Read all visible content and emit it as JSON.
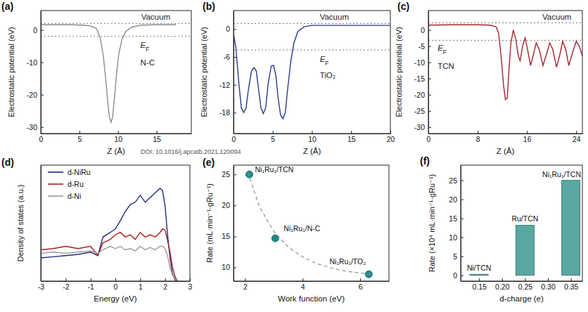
{
  "chart_data": [
    {
      "type": "line",
      "title": "(a)",
      "x_label": "Z (Å)",
      "y_label": "Electrostatic potential (eV)",
      "x": [
        0,
        2,
        4,
        5.5,
        6.5,
        7.2,
        7.7,
        8.1,
        8.4,
        8.7,
        8.9,
        9.1,
        9.3,
        9.5,
        9.8,
        10.1,
        10.5,
        11,
        11.8,
        13,
        15,
        17.5
      ],
      "series": [
        {
          "color": "#8c8c8c",
          "values": [
            1.6,
            1.6,
            1.6,
            1.5,
            1.2,
            0.5,
            -2.5,
            -8,
            -15,
            -23,
            -27,
            -28.5,
            -27,
            -22,
            -14,
            -7.5,
            -3,
            -0.5,
            0.9,
            1.5,
            1.6,
            1.6
          ]
        }
      ],
      "xlim": [
        0,
        19.5
      ],
      "ylim": [
        -32,
        6
      ],
      "xticks": [
        0,
        5,
        10,
        15
      ],
      "yticks": [
        0,
        -10,
        -20,
        -30
      ],
      "hlines": [
        {
          "y": 2.0,
          "line_style": "dotted"
        },
        {
          "y": -2.0,
          "line_style": "dotted"
        }
      ],
      "annotations": [
        {
          "text": "Vacuum",
          "x": 13.0,
          "y": 3.2
        },
        {
          "text": "E",
          "subscript": "F",
          "x": 12.9,
          "y": -5.5
        },
        {
          "text": "N-C",
          "x": 12.9,
          "y": -11
        }
      ]
    },
    {
      "type": "line",
      "title": "(b)",
      "x_label": "Z (Å)",
      "y_label": "Electrostatic potential (eV)",
      "source": "DOI: 10.1016/j.apcatb.2021.120094",
      "x": [
        0,
        0.3,
        0.7,
        1.0,
        1.3,
        1.6,
        1.9,
        2.3,
        2.6,
        2.9,
        3.2,
        3.5,
        3.8,
        4.1,
        4.4,
        4.8,
        5.1,
        5.4,
        5.7,
        6.0,
        6.3,
        6.6,
        6.9,
        7.3,
        7.7,
        8.2,
        9,
        10,
        12,
        15,
        20
      ],
      "series": [
        {
          "color": "#2b3990",
          "values": [
            -1,
            -4,
            -12,
            -17,
            -18,
            -17,
            -13,
            -9,
            -8.3,
            -9,
            -13,
            -17,
            -18.2,
            -17,
            -12,
            -8,
            -7.8,
            -10,
            -15,
            -18.5,
            -19.3,
            -18,
            -13,
            -7,
            -3,
            -0.5,
            0.5,
            0.8,
            0.8,
            0.8,
            0.8
          ]
        }
      ],
      "xlim": [
        0,
        20
      ],
      "ylim": [
        -22.5,
        4
      ],
      "xticks": [
        0,
        5,
        10,
        15,
        20
      ],
      "yticks": [
        0,
        -6,
        -12,
        -18
      ],
      "hlines": [
        {
          "y": 1.2,
          "line_style": "dotted"
        },
        {
          "y": -4.5,
          "line_style": "dotted"
        }
      ],
      "annotations": [
        {
          "text": "Vacuum",
          "x": 11.0,
          "y": 2.0
        },
        {
          "text": "E",
          "subscript": "F",
          "x": 11.0,
          "y": -7
        },
        {
          "text": "TiO₂",
          "x": 11.0,
          "y": -10.5
        }
      ]
    },
    {
      "type": "line",
      "title": "(c)",
      "x_label": "Z (Å)",
      "y_label": "Electrostatic potential (eV)",
      "x": [
        0,
        4,
        8,
        10,
        11,
        11.4,
        11.8,
        12.2,
        12.5,
        12.8,
        13.1,
        13.4,
        13.8,
        14.2,
        14.6,
        14.9,
        15.3,
        15.7,
        16.1,
        16.6,
        17.0,
        17.5,
        18.0,
        18.6,
        19.1,
        19.7,
        20.2,
        20.8,
        21.3,
        21.8,
        22.3,
        22.8,
        23.4,
        24.0,
        24.5,
        25
      ],
      "series": [
        {
          "color": "#a3262a",
          "values": [
            1.5,
            1.6,
            1.6,
            1.5,
            1.0,
            -1,
            -8,
            -17,
            -21.5,
            -21,
            -12,
            -4,
            0,
            -3,
            -8,
            -9.5,
            -5,
            -2.5,
            -6,
            -11,
            -8,
            -4,
            -6,
            -11,
            -8,
            -4,
            -6,
            -11.5,
            -8,
            -3.5,
            -6,
            -11,
            -7,
            -3.5,
            -5,
            -8
          ]
        }
      ],
      "xlim": [
        0,
        25
      ],
      "ylim": [
        -32,
        6
      ],
      "xticks": [
        0,
        8,
        16,
        24
      ],
      "yticks": [
        0,
        -5,
        -10,
        -15,
        -20,
        -25,
        -30
      ],
      "hlines": [
        {
          "y": 2.2,
          "line_style": "dotted"
        },
        {
          "y": -3.2,
          "line_style": "dotted"
        }
      ],
      "annotations": [
        {
          "text": "Vacuum",
          "x": 18.5,
          "y": 3.2
        },
        {
          "text": "E",
          "subscript": "F",
          "x": 1.5,
          "y": -6.3
        },
        {
          "text": "TCN",
          "x": 1.5,
          "y": -12
        }
      ]
    },
    {
      "type": "line",
      "title": "(d)",
      "x_label": "Energy (eV)",
      "y_label": "Density of states (a.u.)",
      "x": [
        -3,
        -2.5,
        -2,
        -1.5,
        -1,
        -0.7,
        -0.5,
        -0.2,
        0,
        0.2,
        0.4,
        0.6,
        0.8,
        1.0,
        1.2,
        1.4,
        1.6,
        1.8,
        1.9,
        2.0,
        2.1,
        2.2,
        2.3,
        2.4,
        2.5
      ],
      "series": [
        {
          "name": "d-NiRu",
          "color": "#1f2a7a",
          "values": [
            0.2,
            0.21,
            0.22,
            0.23,
            0.25,
            0.22,
            0.38,
            0.42,
            0.45,
            0.52,
            0.6,
            0.66,
            0.68,
            0.74,
            0.68,
            0.72,
            0.76,
            0.8,
            0.78,
            0.65,
            0.4,
            0.2,
            0.06,
            0.01,
            0
          ]
        },
        {
          "name": "d-Ru",
          "color": "#a82020",
          "values": [
            0.27,
            0.28,
            0.3,
            0.28,
            0.3,
            0.22,
            0.33,
            0.36,
            0.4,
            0.42,
            0.38,
            0.4,
            0.36,
            0.42,
            0.38,
            0.4,
            0.38,
            0.42,
            0.45,
            0.44,
            0.35,
            0.25,
            0.12,
            0.04,
            0
          ]
        },
        {
          "name": "d-Ni",
          "color": "#9a9a9a",
          "values": [
            0.24,
            0.25,
            0.24,
            0.25,
            0.26,
            0.24,
            0.27,
            0.3,
            0.28,
            0.3,
            0.27,
            0.28,
            0.26,
            0.3,
            0.27,
            0.29,
            0.27,
            0.3,
            0.3,
            0.28,
            0.22,
            0.12,
            0.05,
            0.02,
            0
          ]
        }
      ],
      "xlim": [
        -3,
        3
      ],
      "ylim": [
        0,
        1
      ],
      "xticks": [
        -3,
        -2,
        -1,
        0,
        1,
        2,
        3
      ],
      "tick_labels": "x",
      "legend": "upper left"
    },
    {
      "type": "scatter",
      "title": "(e)",
      "x_label": "Work function (eV)",
      "y_label": "Rate (mL·min⁻¹·gRu⁻¹)",
      "series": [
        {
          "type": "scatter",
          "marker": "circle",
          "color": "#1e8c8a",
          "x": [
            2.15,
            3.05,
            6.3
          ],
          "values": [
            25,
            14.7,
            8.9
          ],
          "labels": [
            "Ni₁Ru₁/TCN",
            "Ni₁Ru₁/N-C",
            "Ni₁Ru₁/TO₂"
          ]
        },
        {
          "type": "line",
          "line_style": "dashed",
          "color": "#8f8f8f",
          "x": [
            2.1,
            2.5,
            3,
            3.5,
            4,
            4.5,
            5,
            5.5,
            6,
            6.4
          ],
          "values": [
            25.3,
            19.8,
            15.8,
            13.3,
            11.7,
            10.6,
            9.9,
            9.4,
            9.1,
            8.9
          ]
        }
      ],
      "xlim": [
        1.6,
        7
      ],
      "ylim": [
        7.8,
        26.5
      ],
      "xticks": [
        2,
        4,
        6
      ],
      "yticks": [
        10,
        15,
        20,
        25
      ]
    },
    {
      "type": "bar",
      "title": "(f)",
      "x_label": "d-charge (e)",
      "y_label": "Rate (×10⁴ mL·min⁻¹·gRu⁻¹)",
      "categories": [
        "Ni/TCN",
        "Ru/TCN",
        "Ni₁Ru₁/TCN"
      ],
      "x": [
        0.15,
        0.25,
        0.35
      ],
      "values": [
        0.3,
        13.2,
        25
      ],
      "color": "#5aa7a2",
      "xlim": [
        0.11,
        0.375
      ],
      "ylim": [
        -1.5,
        29
      ],
      "xticks": [
        0.15,
        {
          "value": 0.2,
          "label": "0.20"
        },
        0.25,
        {
          "value": 0.3,
          "label": "0.30"
        },
        0.35
      ],
      "yticks": [
        0,
        5,
        10,
        15,
        20,
        25
      ]
    }
  ]
}
